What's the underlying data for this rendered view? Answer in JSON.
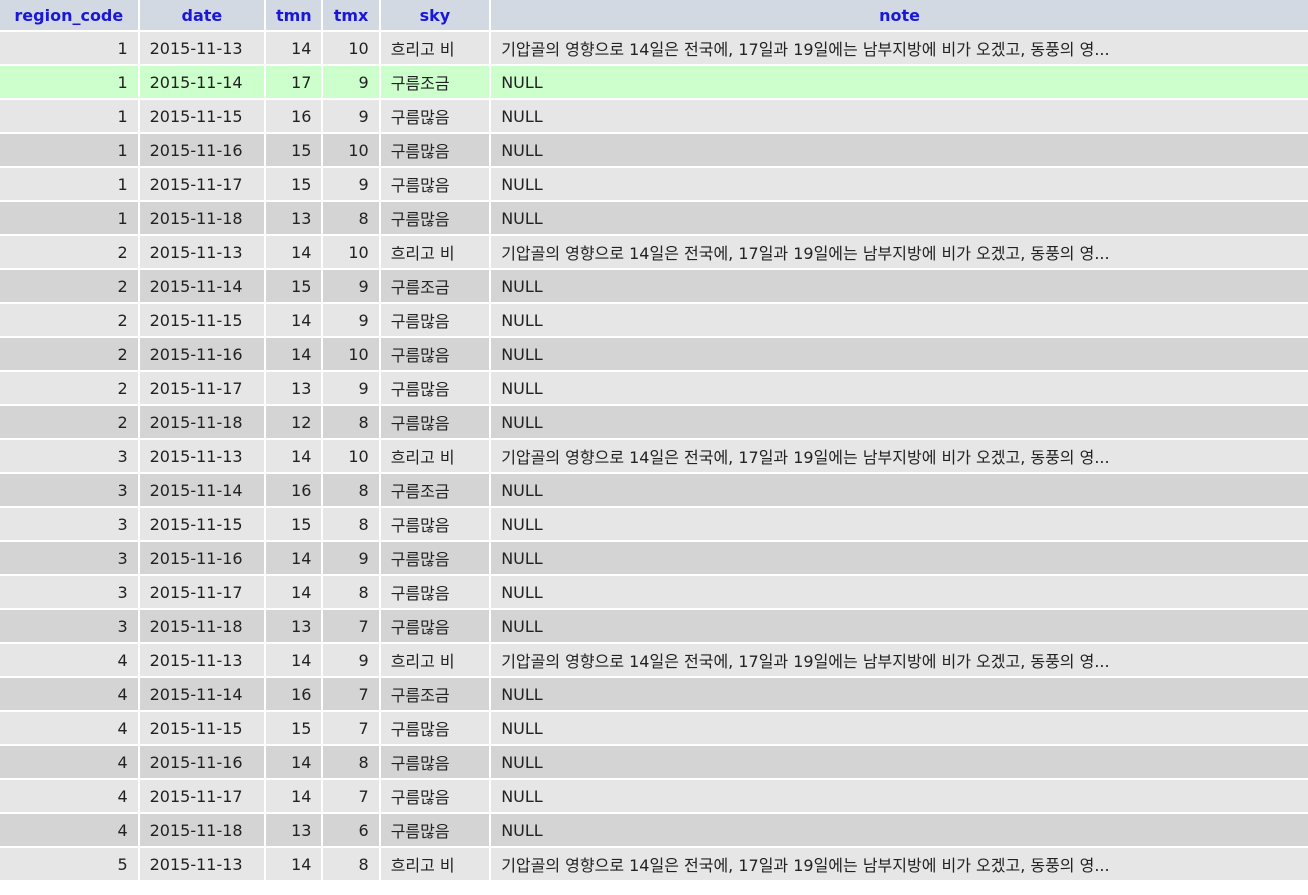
{
  "grid": {
    "columns": [
      {
        "key": "region_code",
        "label": "region_code"
      },
      {
        "key": "date",
        "label": "date"
      },
      {
        "key": "tmn",
        "label": "tmn"
      },
      {
        "key": "tmx",
        "label": "tmx"
      },
      {
        "key": "sky",
        "label": "sky"
      },
      {
        "key": "note",
        "label": "note"
      }
    ],
    "selected_row_index": 1,
    "rows": [
      {
        "region_code": "1",
        "date": "2015-11-13",
        "tmn": "14",
        "tmx": "10",
        "sky": "흐리고 비",
        "note": "기압골의 영향으로 14일은 전국에, 17일과 19일에는 남부지방에 비가 오겠고, 동풍의 영..."
      },
      {
        "region_code": "1",
        "date": "2015-11-14",
        "tmn": "17",
        "tmx": "9",
        "sky": "구름조금",
        "note": "NULL"
      },
      {
        "region_code": "1",
        "date": "2015-11-15",
        "tmn": "16",
        "tmx": "9",
        "sky": "구름많음",
        "note": "NULL"
      },
      {
        "region_code": "1",
        "date": "2015-11-16",
        "tmn": "15",
        "tmx": "10",
        "sky": "구름많음",
        "note": "NULL"
      },
      {
        "region_code": "1",
        "date": "2015-11-17",
        "tmn": "15",
        "tmx": "9",
        "sky": "구름많음",
        "note": "NULL"
      },
      {
        "region_code": "1",
        "date": "2015-11-18",
        "tmn": "13",
        "tmx": "8",
        "sky": "구름많음",
        "note": "NULL"
      },
      {
        "region_code": "2",
        "date": "2015-11-13",
        "tmn": "14",
        "tmx": "10",
        "sky": "흐리고 비",
        "note": "기압골의 영향으로 14일은 전국에, 17일과 19일에는 남부지방에 비가 오겠고, 동풍의 영..."
      },
      {
        "region_code": "2",
        "date": "2015-11-14",
        "tmn": "15",
        "tmx": "9",
        "sky": "구름조금",
        "note": "NULL"
      },
      {
        "region_code": "2",
        "date": "2015-11-15",
        "tmn": "14",
        "tmx": "9",
        "sky": "구름많음",
        "note": "NULL"
      },
      {
        "region_code": "2",
        "date": "2015-11-16",
        "tmn": "14",
        "tmx": "10",
        "sky": "구름많음",
        "note": "NULL"
      },
      {
        "region_code": "2",
        "date": "2015-11-17",
        "tmn": "13",
        "tmx": "9",
        "sky": "구름많음",
        "note": "NULL"
      },
      {
        "region_code": "2",
        "date": "2015-11-18",
        "tmn": "12",
        "tmx": "8",
        "sky": "구름많음",
        "note": "NULL"
      },
      {
        "region_code": "3",
        "date": "2015-11-13",
        "tmn": "14",
        "tmx": "10",
        "sky": "흐리고 비",
        "note": "기압골의 영향으로 14일은 전국에, 17일과 19일에는 남부지방에 비가 오겠고, 동풍의 영..."
      },
      {
        "region_code": "3",
        "date": "2015-11-14",
        "tmn": "16",
        "tmx": "8",
        "sky": "구름조금",
        "note": "NULL"
      },
      {
        "region_code": "3",
        "date": "2015-11-15",
        "tmn": "15",
        "tmx": "8",
        "sky": "구름많음",
        "note": "NULL"
      },
      {
        "region_code": "3",
        "date": "2015-11-16",
        "tmn": "14",
        "tmx": "9",
        "sky": "구름많음",
        "note": "NULL"
      },
      {
        "region_code": "3",
        "date": "2015-11-17",
        "tmn": "14",
        "tmx": "8",
        "sky": "구름많음",
        "note": "NULL"
      },
      {
        "region_code": "3",
        "date": "2015-11-18",
        "tmn": "13",
        "tmx": "7",
        "sky": "구름많음",
        "note": "NULL"
      },
      {
        "region_code": "4",
        "date": "2015-11-13",
        "tmn": "14",
        "tmx": "9",
        "sky": "흐리고 비",
        "note": "기압골의 영향으로 14일은 전국에, 17일과 19일에는 남부지방에 비가 오겠고, 동풍의 영..."
      },
      {
        "region_code": "4",
        "date": "2015-11-14",
        "tmn": "16",
        "tmx": "7",
        "sky": "구름조금",
        "note": "NULL"
      },
      {
        "region_code": "4",
        "date": "2015-11-15",
        "tmn": "15",
        "tmx": "7",
        "sky": "구름많음",
        "note": "NULL"
      },
      {
        "region_code": "4",
        "date": "2015-11-16",
        "tmn": "14",
        "tmx": "8",
        "sky": "구름많음",
        "note": "NULL"
      },
      {
        "region_code": "4",
        "date": "2015-11-17",
        "tmn": "14",
        "tmx": "7",
        "sky": "구름많음",
        "note": "NULL"
      },
      {
        "region_code": "4",
        "date": "2015-11-18",
        "tmn": "13",
        "tmx": "6",
        "sky": "구름많음",
        "note": "NULL"
      },
      {
        "region_code": "5",
        "date": "2015-11-13",
        "tmn": "14",
        "tmx": "8",
        "sky": "흐리고 비",
        "note": "기압골의 영향으로 14일은 전국에, 17일과 19일에는 남부지방에 비가 오겠고, 동풍의 영..."
      }
    ]
  },
  "colors": {
    "header_bg": "#d2d9e3",
    "header_text": "#1a18d6",
    "row_odd_bg": "#e6e6e6",
    "row_even_bg": "#d4d4d4",
    "selected_row_bg": "#ccffcc"
  }
}
